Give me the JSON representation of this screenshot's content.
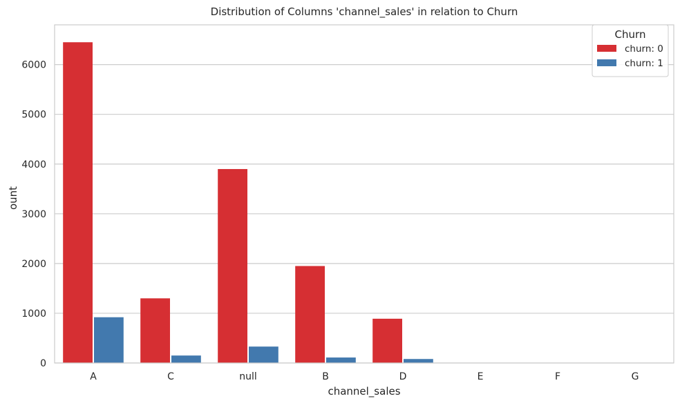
{
  "chart_data": {
    "type": "bar",
    "title": "Distribution of Columns 'channel_sales' in relation to Churn",
    "xlabel": "channel_sales",
    "ylabel": "ount",
    "categories": [
      "A",
      "C",
      "null",
      "B",
      "D",
      "E",
      "F",
      "G"
    ],
    "series": [
      {
        "name": "churn: 0",
        "values": [
          6450,
          1300,
          3900,
          1950,
          890,
          0,
          0,
          0
        ],
        "color": "#d62f33"
      },
      {
        "name": "churn: 1",
        "values": [
          920,
          150,
          330,
          110,
          80,
          0,
          0,
          0
        ],
        "color": "#4279ae"
      }
    ],
    "ylim": [
      0,
      6800
    ],
    "yticks": [
      0,
      1000,
      2000,
      3000,
      4000,
      5000,
      6000
    ],
    "grid": "horizontal",
    "legend": {
      "title": "Churn",
      "placement": "top-right"
    }
  }
}
